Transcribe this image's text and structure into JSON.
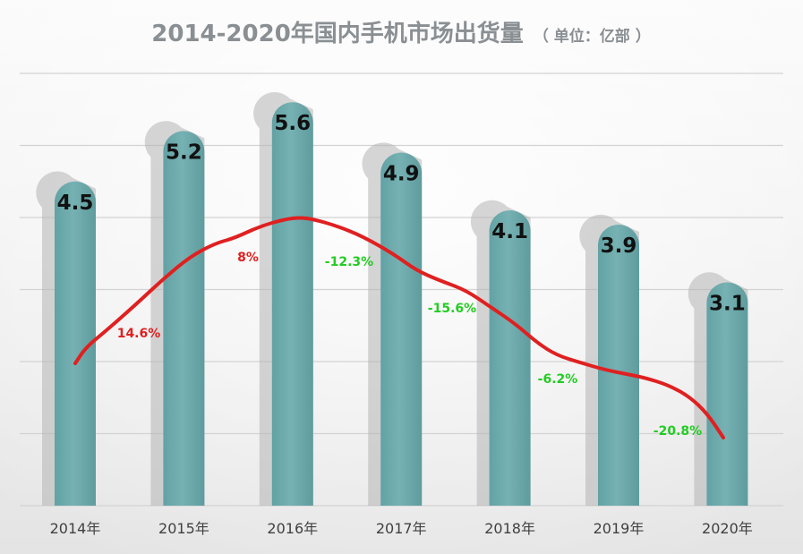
{
  "chart_data": {
    "type": "bar",
    "title": "2014-2020年国内手机市场出货量",
    "title_unit": "（ 单位：亿部 ）",
    "categories": [
      "2014年",
      "2015年",
      "2016年",
      "2017年",
      "2018年",
      "2019年",
      "2020年"
    ],
    "values": [
      4.5,
      5.2,
      5.6,
      4.9,
      4.1,
      3.9,
      3.1
    ],
    "value_labels": [
      "4.5",
      "5.2",
      "5.6",
      "4.9",
      "4.1",
      "3.9",
      "3.1"
    ],
    "ylim": [
      0,
      6
    ],
    "grid": true,
    "bar_color": "#70adaf",
    "shadow_color": "#b4b4b4",
    "growth_line": {
      "color": "#e02020",
      "labels": [
        "14.6%",
        "8%",
        "-12.3%",
        "-15.6%",
        "-6.2%",
        "-20.8%"
      ],
      "label_colors": [
        "#e02020",
        "#e02020",
        "#22cc22",
        "#22cc22",
        "#22cc22",
        "#22cc22"
      ]
    }
  }
}
